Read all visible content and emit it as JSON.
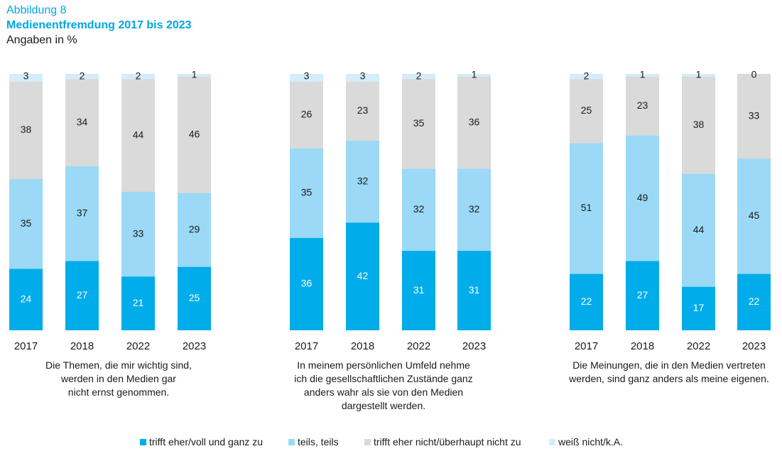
{
  "header": {
    "label": "Abbildung 8",
    "title": "Medienentfremdung 2017 bis 2023",
    "subtitle": "Angaben in %"
  },
  "colors": {
    "trifft_zu": "#00ace9",
    "teils": "#9bd9f6",
    "trifft_nicht_zu": "#dadada",
    "weiss_nicht": "#d3edfa"
  },
  "legend": [
    {
      "label": "trifft eher/voll und ganz zu",
      "color": "#00ace9"
    },
    {
      "label": "teils, teils",
      "color": "#9bd9f6"
    },
    {
      "label": "trifft eher nicht/überhaupt nicht zu",
      "color": "#dadada"
    },
    {
      "label": "weiß nicht/k.A.",
      "color": "#d3edfa"
    }
  ],
  "chart_data": [
    {
      "type": "bar",
      "stacked": true,
      "caption": [
        "Die Themen, die mir wichtig sind,",
        "werden in den Medien gar",
        "nicht ernst genommen."
      ],
      "categories": [
        "2017",
        "2018",
        "2022",
        "2023"
      ],
      "series": [
        {
          "name": "trifft eher/voll und ganz zu",
          "values": [
            24,
            27,
            21,
            25
          ]
        },
        {
          "name": "teils, teils",
          "values": [
            35,
            37,
            33,
            29
          ]
        },
        {
          "name": "trifft eher nicht/überhaupt nicht zu",
          "values": [
            38,
            34,
            44,
            46
          ]
        },
        {
          "name": "weiß nicht/k.A.",
          "values": [
            3,
            2,
            2,
            1
          ]
        }
      ]
    },
    {
      "type": "bar",
      "stacked": true,
      "caption": [
        "In meinem persönlichen Umfeld nehme",
        "ich die gesellschaftlichen Zustände ganz",
        "anders wahr als sie von den Medien",
        "dargestellt werden."
      ],
      "categories": [
        "2017",
        "2018",
        "2022",
        "2023"
      ],
      "series": [
        {
          "name": "trifft eher/voll und ganz zu",
          "values": [
            36,
            42,
            31,
            31
          ]
        },
        {
          "name": "teils, teils",
          "values": [
            35,
            32,
            32,
            32
          ]
        },
        {
          "name": "trifft eher nicht/überhaupt nicht zu",
          "values": [
            26,
            23,
            35,
            36
          ]
        },
        {
          "name": "weiß nicht/k.A.",
          "values": [
            3,
            3,
            2,
            1
          ]
        }
      ]
    },
    {
      "type": "bar",
      "stacked": true,
      "caption": [
        "Die Meinungen, die in den Medien vertreten",
        "werden, sind ganz anders als meine eigenen."
      ],
      "categories": [
        "2017",
        "2018",
        "2022",
        "2023"
      ],
      "series": [
        {
          "name": "trifft eher/voll und ganz zu",
          "values": [
            22,
            27,
            17,
            22
          ]
        },
        {
          "name": "teils, teils",
          "values": [
            51,
            49,
            44,
            45
          ]
        },
        {
          "name": "trifft eher nicht/überhaupt nicht zu",
          "values": [
            25,
            23,
            38,
            33
          ]
        },
        {
          "name": "weiß nicht/k.A.",
          "values": [
            2,
            1,
            1,
            0
          ]
        }
      ]
    }
  ]
}
